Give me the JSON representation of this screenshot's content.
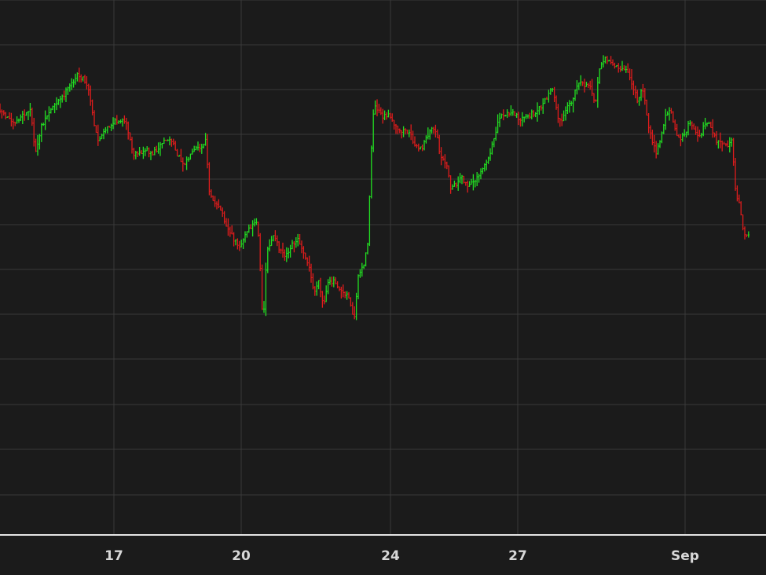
{
  "chart_data": {
    "type": "ohlc",
    "title": "",
    "xlabel": "",
    "ylabel": "",
    "grid": true,
    "legend": "none",
    "x_ticks": [
      {
        "label": "17",
        "index": 0
      },
      {
        "label": "20",
        "index": 1
      },
      {
        "label": "24",
        "index": 2
      },
      {
        "label": "27",
        "index": 3
      },
      {
        "label": "Sep",
        "index": 4
      }
    ],
    "colors": {
      "background": "#1b1b1b",
      "grid": "#3a3a3a",
      "axis": "#e6e6e6",
      "up": "#22e022",
      "down": "#e01c1c",
      "text": "#d8d8d8"
    },
    "price_path": [
      [
        0,
        136
      ],
      [
        10,
        148
      ],
      [
        22,
        155
      ],
      [
        32,
        147
      ],
      [
        42,
        140
      ],
      [
        47,
        200
      ],
      [
        55,
        160
      ],
      [
        64,
        144
      ],
      [
        72,
        132
      ],
      [
        80,
        126
      ],
      [
        90,
        112
      ],
      [
        100,
        96
      ],
      [
        108,
        100
      ],
      [
        116,
        117
      ],
      [
        122,
        160
      ],
      [
        128,
        180
      ],
      [
        134,
        170
      ],
      [
        140,
        162
      ],
      [
        148,
        156
      ],
      [
        156,
        152
      ],
      [
        164,
        160
      ],
      [
        172,
        198
      ],
      [
        180,
        196
      ],
      [
        188,
        190
      ],
      [
        196,
        196
      ],
      [
        204,
        188
      ],
      [
        212,
        178
      ],
      [
        220,
        178
      ],
      [
        228,
        196
      ],
      [
        236,
        208
      ],
      [
        244,
        200
      ],
      [
        252,
        190
      ],
      [
        260,
        188
      ],
      [
        265,
        178
      ],
      [
        268,
        240
      ],
      [
        276,
        260
      ],
      [
        284,
        268
      ],
      [
        292,
        290
      ],
      [
        300,
        304
      ],
      [
        308,
        314
      ],
      [
        316,
        296
      ],
      [
        324,
        286
      ],
      [
        330,
        282
      ],
      [
        334,
        350
      ],
      [
        337,
        418
      ],
      [
        342,
        320
      ],
      [
        350,
        300
      ],
      [
        358,
        316
      ],
      [
        366,
        325
      ],
      [
        374,
        310
      ],
      [
        382,
        305
      ],
      [
        390,
        322
      ],
      [
        396,
        342
      ],
      [
        402,
        372
      ],
      [
        408,
        360
      ],
      [
        414,
        390
      ],
      [
        420,
        362
      ],
      [
        428,
        356
      ],
      [
        434,
        366
      ],
      [
        440,
        372
      ],
      [
        446,
        376
      ],
      [
        453,
        410
      ],
      [
        458,
        352
      ],
      [
        466,
        334
      ],
      [
        471,
        310
      ],
      [
        474,
        210
      ],
      [
        478,
        135
      ],
      [
        484,
        138
      ],
      [
        490,
        148
      ],
      [
        496,
        145
      ],
      [
        502,
        156
      ],
      [
        510,
        168
      ],
      [
        518,
        165
      ],
      [
        526,
        174
      ],
      [
        534,
        190
      ],
      [
        540,
        188
      ],
      [
        546,
        174
      ],
      [
        552,
        162
      ],
      [
        558,
        172
      ],
      [
        564,
        202
      ],
      [
        570,
        206
      ],
      [
        576,
        240
      ],
      [
        582,
        236
      ],
      [
        590,
        226
      ],
      [
        598,
        238
      ],
      [
        606,
        230
      ],
      [
        614,
        218
      ],
      [
        620,
        208
      ],
      [
        626,
        198
      ],
      [
        632,
        172
      ],
      [
        638,
        148
      ],
      [
        646,
        146
      ],
      [
        654,
        144
      ],
      [
        662,
        150
      ],
      [
        670,
        152
      ],
      [
        678,
        146
      ],
      [
        686,
        140
      ],
      [
        694,
        132
      ],
      [
        700,
        122
      ],
      [
        706,
        110
      ],
      [
        712,
        150
      ],
      [
        718,
        154
      ],
      [
        724,
        136
      ],
      [
        730,
        132
      ],
      [
        736,
        112
      ],
      [
        742,
        106
      ],
      [
        748,
        110
      ],
      [
        754,
        108
      ],
      [
        760,
        132
      ],
      [
        766,
        86
      ],
      [
        772,
        72
      ],
      [
        778,
        80
      ],
      [
        786,
        84
      ],
      [
        794,
        88
      ],
      [
        802,
        92
      ],
      [
        808,
        112
      ],
      [
        814,
        128
      ],
      [
        820,
        108
      ],
      [
        826,
        150
      ],
      [
        832,
        180
      ],
      [
        838,
        196
      ],
      [
        844,
        174
      ],
      [
        850,
        146
      ],
      [
        856,
        138
      ],
      [
        862,
        166
      ],
      [
        868,
        180
      ],
      [
        874,
        170
      ],
      [
        880,
        156
      ],
      [
        886,
        164
      ],
      [
        892,
        178
      ],
      [
        898,
        160
      ],
      [
        904,
        154
      ],
      [
        910,
        170
      ],
      [
        916,
        182
      ],
      [
        922,
        184
      ],
      [
        928,
        186
      ],
      [
        934,
        178
      ],
      [
        938,
        240
      ],
      [
        944,
        262
      ],
      [
        948,
        292
      ],
      [
        953,
        300
      ]
    ]
  }
}
